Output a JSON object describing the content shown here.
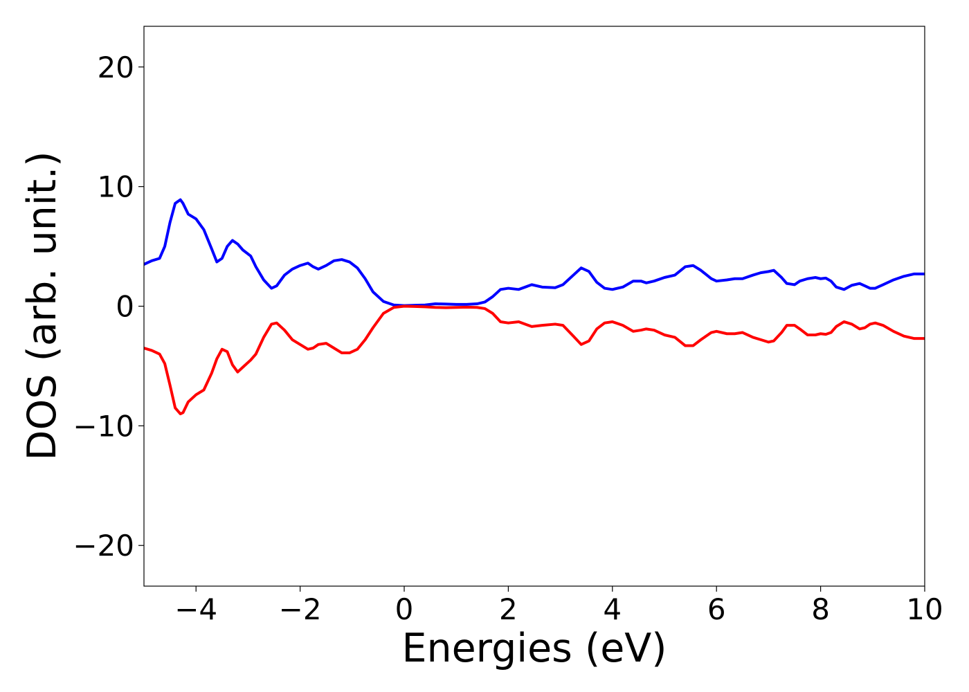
{
  "chart_data": {
    "type": "line",
    "title": "",
    "xlabel": "Energies (eV)",
    "ylabel": "DOS (arb. unit.)",
    "xlim": [
      -5,
      10
    ],
    "ylim": [
      -23.4,
      23.4
    ],
    "xticks": [
      -4,
      -2,
      0,
      2,
      4,
      6,
      8,
      10
    ],
    "xtick_labels": [
      "−4",
      "−2",
      "0",
      "2",
      "4",
      "6",
      "8",
      "10"
    ],
    "yticks": [
      -20,
      -10,
      0,
      10,
      20
    ],
    "ytick_labels": [
      "−20",
      "−10",
      "0",
      "10",
      "20"
    ],
    "grid": false,
    "legend": "none",
    "series": [
      {
        "color": "#0000ff",
        "x": [
          -5.0,
          -4.85,
          -4.7,
          -4.6,
          -4.5,
          -4.4,
          -4.3,
          -4.25,
          -4.15,
          -4.0,
          -3.85,
          -3.7,
          -3.6,
          -3.5,
          -3.4,
          -3.3,
          -3.2,
          -3.1,
          -2.95,
          -2.85,
          -2.7,
          -2.55,
          -2.45,
          -2.3,
          -2.15,
          -2.0,
          -1.85,
          -1.75,
          -1.65,
          -1.5,
          -1.35,
          -1.2,
          -1.05,
          -0.9,
          -0.75,
          -0.6,
          -0.4,
          -0.2,
          0.0,
          0.2,
          0.4,
          0.6,
          0.8,
          1.0,
          1.2,
          1.4,
          1.55,
          1.7,
          1.85,
          2.0,
          2.2,
          2.45,
          2.65,
          2.9,
          3.05,
          3.25,
          3.4,
          3.55,
          3.7,
          3.85,
          4.0,
          4.2,
          4.4,
          4.55,
          4.65,
          4.8,
          5.0,
          5.2,
          5.4,
          5.55,
          5.7,
          5.9,
          6.0,
          6.2,
          6.35,
          6.5,
          6.7,
          6.85,
          7.0,
          7.1,
          7.25,
          7.35,
          7.5,
          7.6,
          7.75,
          7.9,
          8.0,
          8.1,
          8.2,
          8.3,
          8.45,
          8.6,
          8.75,
          8.85,
          8.95,
          9.05,
          9.2,
          9.4,
          9.6,
          9.8,
          10.0
        ],
        "y": [
          3.5,
          3.8,
          4.0,
          5.0,
          7.0,
          8.6,
          8.9,
          8.6,
          7.7,
          7.3,
          6.4,
          4.8,
          3.7,
          4.0,
          5.0,
          5.5,
          5.2,
          4.7,
          4.2,
          3.3,
          2.2,
          1.5,
          1.7,
          2.6,
          3.1,
          3.4,
          3.6,
          3.3,
          3.1,
          3.4,
          3.8,
          3.9,
          3.7,
          3.2,
          2.3,
          1.2,
          0.4,
          0.1,
          0.05,
          0.08,
          0.1,
          0.2,
          0.18,
          0.15,
          0.15,
          0.2,
          0.35,
          0.8,
          1.4,
          1.5,
          1.4,
          1.8,
          1.6,
          1.55,
          1.8,
          2.6,
          3.2,
          2.9,
          2.0,
          1.5,
          1.4,
          1.6,
          2.1,
          2.1,
          1.95,
          2.1,
          2.4,
          2.6,
          3.3,
          3.4,
          3.0,
          2.3,
          2.1,
          2.2,
          2.3,
          2.3,
          2.6,
          2.8,
          2.9,
          3.0,
          2.4,
          1.9,
          1.8,
          2.1,
          2.3,
          2.4,
          2.3,
          2.35,
          2.1,
          1.6,
          1.4,
          1.75,
          1.9,
          1.7,
          1.5,
          1.5,
          1.8,
          2.2,
          2.5,
          2.7,
          2.7
        ]
      },
      {
        "color": "#ff0000",
        "x": [
          -5.0,
          -4.85,
          -4.7,
          -4.6,
          -4.5,
          -4.4,
          -4.3,
          -4.25,
          -4.15,
          -4.0,
          -3.85,
          -3.7,
          -3.6,
          -3.5,
          -3.4,
          -3.3,
          -3.2,
          -3.1,
          -2.95,
          -2.85,
          -2.7,
          -2.55,
          -2.45,
          -2.3,
          -2.15,
          -2.0,
          -1.85,
          -1.75,
          -1.65,
          -1.5,
          -1.35,
          -1.2,
          -1.05,
          -0.9,
          -0.75,
          -0.6,
          -0.4,
          -0.2,
          0.0,
          0.2,
          0.4,
          0.6,
          0.8,
          1.0,
          1.2,
          1.4,
          1.55,
          1.7,
          1.85,
          2.0,
          2.2,
          2.45,
          2.65,
          2.9,
          3.05,
          3.25,
          3.4,
          3.55,
          3.7,
          3.85,
          4.0,
          4.2,
          4.4,
          4.55,
          4.65,
          4.8,
          5.0,
          5.2,
          5.4,
          5.55,
          5.7,
          5.9,
          6.0,
          6.2,
          6.35,
          6.5,
          6.7,
          6.85,
          7.0,
          7.1,
          7.25,
          7.35,
          7.5,
          7.6,
          7.75,
          7.9,
          8.0,
          8.1,
          8.2,
          8.3,
          8.45,
          8.6,
          8.75,
          8.85,
          8.95,
          9.05,
          9.2,
          9.4,
          9.6,
          9.8,
          10.0
        ],
        "y": [
          -3.5,
          -3.7,
          -4.0,
          -4.8,
          -6.6,
          -8.5,
          -9.0,
          -8.9,
          -8.0,
          -7.4,
          -7.0,
          -5.6,
          -4.4,
          -3.6,
          -3.8,
          -4.9,
          -5.5,
          -5.1,
          -4.5,
          -4.0,
          -2.6,
          -1.5,
          -1.4,
          -2.0,
          -2.8,
          -3.2,
          -3.6,
          -3.5,
          -3.2,
          -3.1,
          -3.5,
          -3.9,
          -3.9,
          -3.6,
          -2.8,
          -1.8,
          -0.6,
          -0.1,
          0.0,
          -0.02,
          -0.05,
          -0.1,
          -0.12,
          -0.1,
          -0.08,
          -0.1,
          -0.2,
          -0.6,
          -1.3,
          -1.4,
          -1.3,
          -1.7,
          -1.6,
          -1.5,
          -1.6,
          -2.5,
          -3.2,
          -2.9,
          -1.9,
          -1.4,
          -1.3,
          -1.6,
          -2.1,
          -2.0,
          -1.9,
          -2.0,
          -2.4,
          -2.6,
          -3.3,
          -3.3,
          -2.8,
          -2.2,
          -2.1,
          -2.3,
          -2.3,
          -2.2,
          -2.6,
          -2.8,
          -3.0,
          -2.9,
          -2.2,
          -1.6,
          -1.6,
          -1.9,
          -2.4,
          -2.4,
          -2.3,
          -2.35,
          -2.2,
          -1.7,
          -1.3,
          -1.5,
          -1.9,
          -1.8,
          -1.5,
          -1.4,
          -1.6,
          -2.1,
          -2.5,
          -2.7,
          -2.7
        ]
      }
    ]
  }
}
